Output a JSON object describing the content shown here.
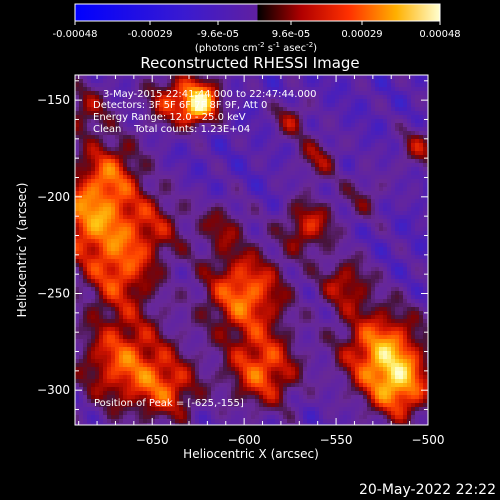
{
  "chart_data": {
    "type": "heatmap",
    "title": "Reconstructed RHESSI Image",
    "xlabel": "Heliocentric X (arcsec)",
    "ylabel": "Heliocentric Y (arcsec)",
    "xlim": [
      -692,
      -500
    ],
    "ylim": [
      -318,
      -137
    ],
    "xticks": [
      -650,
      -600,
      -550,
      -500
    ],
    "yticks": [
      -150,
      -200,
      -250,
      -300
    ],
    "colorbar": {
      "ticks": [
        "-0.00048",
        "-0.00029",
        "-9.6e-05",
        "9.6e-05",
        "0.00029",
        "0.00048"
      ],
      "unit_base": "(photons cm",
      "unit_sup1": "-2",
      "unit_mid": " s",
      "unit_sup2": "-1",
      "unit_end": " asec",
      "unit_sup3": "-2",
      "unit_close": ")",
      "range": [
        -0.00048,
        0.00048
      ]
    },
    "annotations": {
      "time_range": "3-May-2015 22:41:44.000 to 22:47:44.000",
      "detectors": "Detectors: 3F 5F 6F 7F 8F 9F, Att 0",
      "energy_range": "Energy Range: 12.0 - 25.0 keV",
      "clean": "Clean    Total counts: 1.23E+04",
      "peak": "Position of Peak = [-625,-155]"
    },
    "peak": [
      -625,
      -155
    ]
  },
  "footer": {
    "date": "20-May-2022 22:22"
  }
}
